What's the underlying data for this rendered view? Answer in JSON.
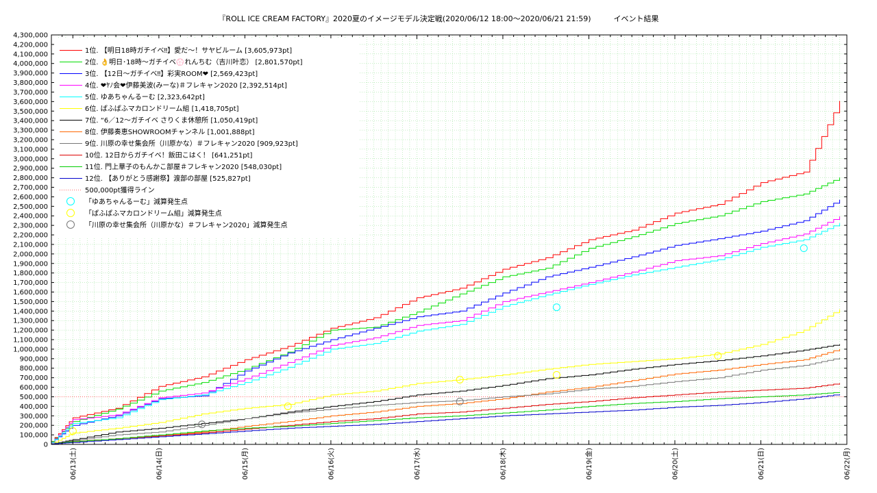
{
  "title": "『ROLL ICE CREAM FACTORY』2020夏のイメージモデル決定戦(2020/06/12 18:00～2020/06/21 21:59)　　　イベント結果",
  "colors": {
    "grid": "#88dd88",
    "frame": "#000000",
    "background": "#ffffff"
  },
  "chart_data": {
    "type": "line",
    "title": "『ROLL ICE CREAM FACTORY』2020夏のイメージモデル決定戦(2020/06/12 18:00～2020/06/21 21:59)　　　イベント結果",
    "xlabel": "",
    "ylabel": "",
    "x_tick_labels": [
      "06/13(土)",
      "06/14(日)",
      "06/15(月)",
      "06/16(火)",
      "06/17(水)",
      "06/18(木)",
      "06/19(金)",
      "06/20(土)",
      "06/21(日)",
      "06/22(月)"
    ],
    "xlim": [
      "06/12 18:00",
      "06/22 00:00"
    ],
    "ylim": [
      0,
      4300000
    ],
    "y_ticks": [
      0,
      100000,
      200000,
      300000,
      400000,
      500000,
      600000,
      700000,
      800000,
      900000,
      1000000,
      1100000,
      1200000,
      1300000,
      1400000,
      1500000,
      1600000,
      1700000,
      1800000,
      1900000,
      2000000,
      2100000,
      2200000,
      2300000,
      2400000,
      2500000,
      2600000,
      2700000,
      2800000,
      2900000,
      3000000,
      3100000,
      3200000,
      3300000,
      3400000,
      3500000,
      3600000,
      3700000,
      3800000,
      3900000,
      4000000,
      4100000,
      4200000,
      4300000
    ],
    "grid": true,
    "legend_position": "top-left",
    "x_sample_points": [
      "06/12 18:00",
      "06/13 00:00",
      "06/13 12:00",
      "06/14 00:00",
      "06/14 12:00",
      "06/15 00:00",
      "06/15 12:00",
      "06/16 00:00",
      "06/16 12:00",
      "06/17 00:00",
      "06/17 12:00",
      "06/18 00:00",
      "06/18 12:00",
      "06/19 00:00",
      "06/19 12:00",
      "06/20 00:00",
      "06/20 12:00",
      "06/21 00:00",
      "06/21 12:00",
      "06/21 21:59"
    ],
    "series": [
      {
        "name": "1位. 【明日18時ガチイベ‼︎】愛だ～！サヤビルーム [3,605,973pt]",
        "color": "#ff0000",
        "values": [
          30000,
          280000,
          380000,
          610000,
          710000,
          890000,
          1030000,
          1220000,
          1330000,
          1540000,
          1640000,
          1840000,
          1960000,
          2150000,
          2250000,
          2430000,
          2520000,
          2750000,
          2860000,
          3605973
        ]
      },
      {
        "name": "2位. 👌明日･18時～ガチイベ💮れんちむ（吉川叶恋） [2,801,570pt]",
        "color": "#00dd00",
        "values": [
          30000,
          240000,
          370000,
          560000,
          650000,
          790000,
          970000,
          1200000,
          1230000,
          1390000,
          1580000,
          1760000,
          1850000,
          2060000,
          2180000,
          2320000,
          2400000,
          2550000,
          2630000,
          2801570
        ]
      },
      {
        "name": "3位. 【12日～ガチイベ‼︎】彩実ROOM❤︎ [2,569,423pt]",
        "color": "#0000ff",
        "values": [
          20000,
          200000,
          300000,
          480000,
          510000,
          770000,
          960000,
          1100000,
          1220000,
          1340000,
          1400000,
          1590000,
          1760000,
          1860000,
          1970000,
          2090000,
          2160000,
          2240000,
          2350000,
          2569423
        ]
      },
      {
        "name": "4位. ❤ﾔﾉ会❤伊藤美波(みーな)＃フレキャン2020 [2,392,514pt]",
        "color": "#ff00ff",
        "values": [
          20000,
          260000,
          310000,
          490000,
          540000,
          690000,
          860000,
          1040000,
          1120000,
          1250000,
          1300000,
          1500000,
          1600000,
          1700000,
          1810000,
          1930000,
          1980000,
          2110000,
          2210000,
          2392514
        ]
      },
      {
        "name": "5位. ゆあちゃんるーむ [2,323,642pt]",
        "color": "#00ffff",
        "values": [
          20000,
          220000,
          280000,
          470000,
          520000,
          650000,
          810000,
          1000000,
          1060000,
          1190000,
          1260000,
          1450000,
          1570000,
          1680000,
          1780000,
          1860000,
          1940000,
          2070000,
          2150000,
          2323642
        ]
      },
      {
        "name": "6位. ぱふぱふマカロンドリーム組 [1,418,705pt]",
        "color": "#ffff00",
        "values": [
          5000,
          120000,
          170000,
          230000,
          320000,
          380000,
          420000,
          520000,
          560000,
          640000,
          680000,
          730000,
          790000,
          840000,
          870000,
          900000,
          950000,
          1050000,
          1200000,
          1418705
        ]
      },
      {
        "name": "7位. “6／12～ガチイベ さりくま休憩所 [1,050,419pt]",
        "color": "#000000",
        "values": [
          5000,
          50000,
          130000,
          170000,
          220000,
          270000,
          340000,
          400000,
          450000,
          520000,
          560000,
          620000,
          690000,
          730000,
          790000,
          840000,
          880000,
          930000,
          990000,
          1050419
        ]
      },
      {
        "name": "8位. 伊藤奏恵SHOWROOMチャンネル [1,001,888pt]",
        "color": "#ff6600",
        "values": [
          5000,
          30000,
          60000,
          90000,
          130000,
          190000,
          240000,
          300000,
          340000,
          400000,
          430000,
          480000,
          550000,
          600000,
          670000,
          740000,
          780000,
          840000,
          890000,
          1001888
        ]
      },
      {
        "name": "9位. 川原の幸せ集会所（川原かな）＃フレキャン2020 [909,923pt]",
        "color": "#777777",
        "values": [
          5000,
          40000,
          100000,
          130000,
          200000,
          270000,
          330000,
          370000,
          410000,
          440000,
          460000,
          500000,
          530000,
          580000,
          610000,
          660000,
          700000,
          780000,
          830000,
          909923
        ]
      },
      {
        "name": "10位. 12日からガチイベ！飯田こはく！ [641,251pt]",
        "color": "#dd0000",
        "values": [
          5000,
          30000,
          60000,
          90000,
          120000,
          160000,
          200000,
          240000,
          270000,
          320000,
          340000,
          380000,
          420000,
          450000,
          490000,
          520000,
          550000,
          570000,
          590000,
          641251
        ]
      },
      {
        "name": "11位. 門上華子のもんかこ部屋＃フレキャン2020 [548,030pt]",
        "color": "#00cc00",
        "values": [
          5000,
          30000,
          60000,
          100000,
          140000,
          170000,
          190000,
          220000,
          250000,
          280000,
          300000,
          330000,
          360000,
          400000,
          430000,
          450000,
          480000,
          500000,
          520000,
          548030
        ]
      },
      {
        "name": "12位. 【ありがとう感謝祭】渡部の部屋 [525,827pt]",
        "color": "#0000cc",
        "values": [
          5000,
          20000,
          50000,
          80000,
          110000,
          140000,
          170000,
          190000,
          210000,
          240000,
          270000,
          300000,
          320000,
          340000,
          360000,
          390000,
          410000,
          440000,
          480000,
          525827
        ]
      }
    ],
    "reference_lines": [
      {
        "name": "500,000pt獲得ライン",
        "value": 500000,
        "color": "#ff6666",
        "dotted": true
      }
    ],
    "markers": [
      {
        "name": "「ゆあちゃんるーむ」減算発生点",
        "color": "#00ffff",
        "points": [
          {
            "x": "06/18 15:00",
            "y": 1440000
          },
          {
            "x": "06/21 12:00",
            "y": 2060000
          }
        ]
      },
      {
        "name": "「ぱふぱふマカロンドリーム組」減算発生点",
        "color": "#ffff00",
        "points": [
          {
            "x": "06/13 00:00",
            "y": 140000
          },
          {
            "x": "06/15 12:00",
            "y": 400000
          },
          {
            "x": "06/17 12:00",
            "y": 680000
          },
          {
            "x": "06/18 15:00",
            "y": 730000
          },
          {
            "x": "06/20 12:00",
            "y": 930000
          }
        ]
      },
      {
        "name": "「川原の幸せ集会所（川原かな）＃フレキャン2020」減算発生点",
        "color": "#777777",
        "points": [
          {
            "x": "06/14 12:00",
            "y": 210000
          },
          {
            "x": "06/17 12:00",
            "y": 450000
          }
        ]
      }
    ]
  }
}
